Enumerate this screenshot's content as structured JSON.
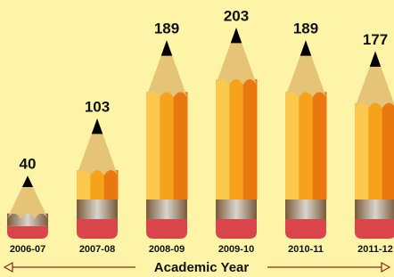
{
  "chart_data": {
    "type": "pictogram",
    "x_label": "Academic Year",
    "categories": [
      "2006-07",
      "2007-08",
      "2008-09",
      "2009-10",
      "2010-11",
      "2011-12"
    ],
    "values": [
      40,
      103,
      189,
      203,
      189,
      177
    ]
  }
}
